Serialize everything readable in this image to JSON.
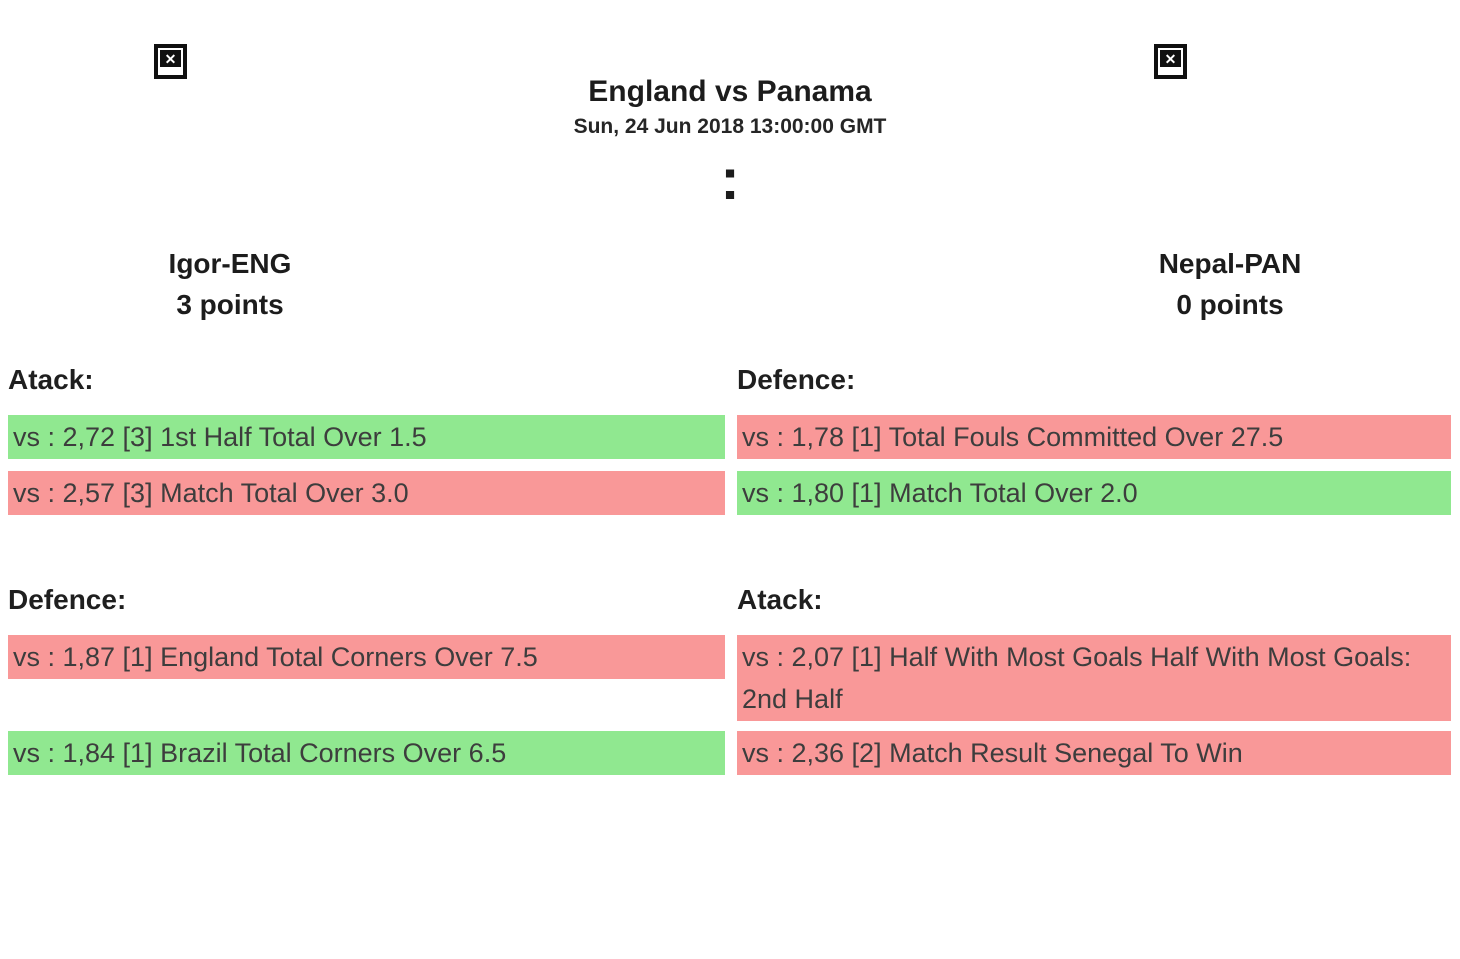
{
  "match": {
    "title": "England vs Panama",
    "kickoff": "Sun, 24 Jun 2018 13:00:00 GMT",
    "score_separator": ":"
  },
  "players": {
    "left": {
      "name": "Igor-ENG",
      "points": "3 points"
    },
    "right": {
      "name": "Nepal-PAN",
      "points": "0 points"
    }
  },
  "icons": {
    "broken_image_glyph": "✕"
  },
  "colors": {
    "win": "#90e890",
    "loss": "#f99898"
  },
  "bets": {
    "top": {
      "left_heading": "Atack:",
      "right_heading": "Defence:",
      "rows": [
        {
          "left": {
            "text": "vs : 2,72 [3] 1st Half Total Over 1.5",
            "result": "win"
          },
          "right": {
            "text": "vs : 1,78 [1] Total Fouls Committed Over 27.5",
            "result": "loss"
          }
        },
        {
          "left": {
            "text": "vs : 2,57 [3] Match Total Over 3.0",
            "result": "loss"
          },
          "right": {
            "text": "vs : 1,80 [1] Match Total Over 2.0",
            "result": "win"
          }
        }
      ]
    },
    "bottom": {
      "left_heading": "Defence:",
      "right_heading": "Atack:",
      "rows": [
        {
          "left": {
            "text": "vs : 1,87 [1] England Total Corners Over 7.5",
            "result": "loss"
          },
          "right": {
            "text": "vs : 2,07 [1] Half With Most Goals Half With Most Goals: 2nd Half",
            "result": "loss"
          }
        },
        {
          "left": {
            "text": "vs : 1,84 [1] Brazil Total Corners Over 6.5",
            "result": "win"
          },
          "right": {
            "text": "vs : 2,36 [2] Match Result Senegal To Win",
            "result": "loss"
          }
        }
      ]
    }
  }
}
